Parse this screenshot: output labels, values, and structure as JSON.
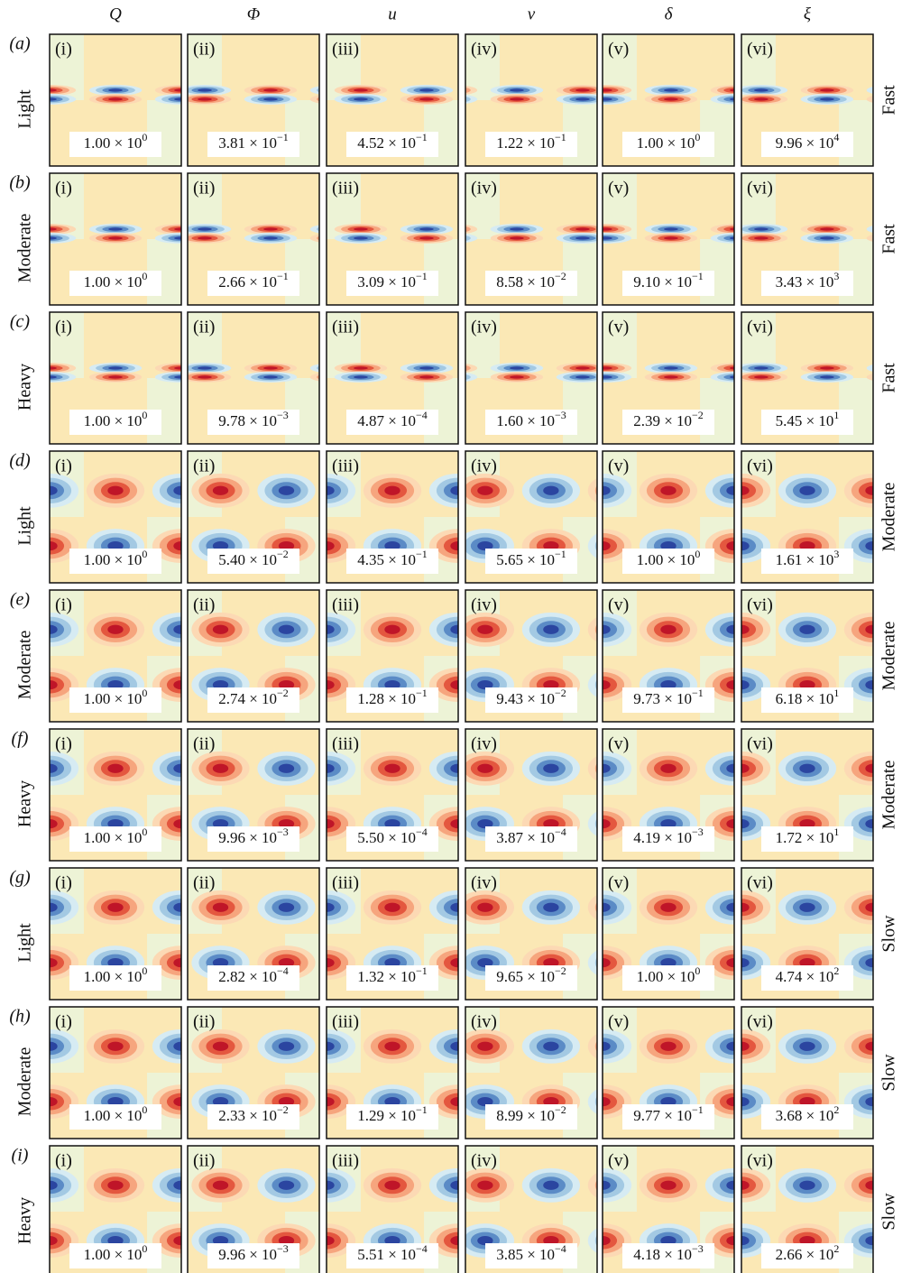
{
  "columns": [
    "Q",
    "Φ",
    "u",
    "v",
    "δ",
    "ξ"
  ],
  "panel_ids": [
    "(i)",
    "(ii)",
    "(iii)",
    "(iv)",
    "(v)",
    "(vi)"
  ],
  "rows": [
    {
      "letter": "(a)",
      "left": "Light",
      "right": "Fast",
      "panels": [
        {
          "text": "1.00 × 10",
          "exponent": "0"
        },
        {
          "text": "3.81 × 10",
          "exponent": "−1"
        },
        {
          "text": "4.52 × 10",
          "exponent": "−1"
        },
        {
          "text": "1.22 × 10",
          "exponent": "−1"
        },
        {
          "text": "1.00 × 10",
          "exponent": "0"
        },
        {
          "text": "9.96 × 10",
          "exponent": "4"
        }
      ]
    },
    {
      "letter": "(b)",
      "left": "Moderate",
      "right": "Fast",
      "panels": [
        {
          "text": "1.00 × 10",
          "exponent": "0"
        },
        {
          "text": "2.66 × 10",
          "exponent": "−1"
        },
        {
          "text": "3.09 × 10",
          "exponent": "−1"
        },
        {
          "text": "8.58 × 10",
          "exponent": "−2"
        },
        {
          "text": "9.10 × 10",
          "exponent": "−1"
        },
        {
          "text": "3.43 × 10",
          "exponent": "3"
        }
      ]
    },
    {
      "letter": "(c)",
      "left": "Heavy",
      "right": "Fast",
      "panels": [
        {
          "text": "1.00 × 10",
          "exponent": "0"
        },
        {
          "text": "9.78 × 10",
          "exponent": "−3"
        },
        {
          "text": "4.87 × 10",
          "exponent": "−4"
        },
        {
          "text": "1.60 × 10",
          "exponent": "−3"
        },
        {
          "text": "2.39 × 10",
          "exponent": "−2"
        },
        {
          "text": "5.45 × 10",
          "exponent": "1"
        }
      ]
    },
    {
      "letter": "(d)",
      "left": "Light",
      "right": "Moderate",
      "panels": [
        {
          "text": "1.00 × 10",
          "exponent": "0"
        },
        {
          "text": "5.40 × 10",
          "exponent": "−2"
        },
        {
          "text": "4.35 × 10",
          "exponent": "−1"
        },
        {
          "text": "5.65 × 10",
          "exponent": "−1"
        },
        {
          "text": "1.00 × 10",
          "exponent": "0"
        },
        {
          "text": "1.61 × 10",
          "exponent": "3"
        }
      ]
    },
    {
      "letter": "(e)",
      "left": "Moderate",
      "right": "Moderate",
      "panels": [
        {
          "text": "1.00 × 10",
          "exponent": "0"
        },
        {
          "text": "2.74 × 10",
          "exponent": "−2"
        },
        {
          "text": "1.28 × 10",
          "exponent": "−1"
        },
        {
          "text": "9.43 × 10",
          "exponent": "−2"
        },
        {
          "text": "9.73 × 10",
          "exponent": "−1"
        },
        {
          "text": "6.18 × 10",
          "exponent": "1"
        }
      ]
    },
    {
      "letter": "(f)",
      "left": "Heavy",
      "right": "Moderate",
      "panels": [
        {
          "text": "1.00 × 10",
          "exponent": "0"
        },
        {
          "text": "9.96 × 10",
          "exponent": "−3"
        },
        {
          "text": "5.50 × 10",
          "exponent": "−4"
        },
        {
          "text": "3.87 × 10",
          "exponent": "−4"
        },
        {
          "text": "4.19 × 10",
          "exponent": "−3"
        },
        {
          "text": "1.72 × 10",
          "exponent": "1"
        }
      ]
    },
    {
      "letter": "(g)",
      "left": "Light",
      "right": "Slow",
      "panels": [
        {
          "text": "1.00 × 10",
          "exponent": "0"
        },
        {
          "text": "2.82 × 10",
          "exponent": "−4"
        },
        {
          "text": "1.32 × 10",
          "exponent": "−1"
        },
        {
          "text": "9.65 × 10",
          "exponent": "−2"
        },
        {
          "text": "1.00 × 10",
          "exponent": "0"
        },
        {
          "text": "4.74 × 10",
          "exponent": "2"
        }
      ]
    },
    {
      "letter": "(h)",
      "left": "Moderate",
      "right": "Slow",
      "panels": [
        {
          "text": "1.00 × 10",
          "exponent": "0"
        },
        {
          "text": "2.33 × 10",
          "exponent": "−2"
        },
        {
          "text": "1.29 × 10",
          "exponent": "−1"
        },
        {
          "text": "8.99 × 10",
          "exponent": "−2"
        },
        {
          "text": "9.77 × 10",
          "exponent": "−1"
        },
        {
          "text": "3.68 × 10",
          "exponent": "2"
        }
      ]
    },
    {
      "letter": "(i)",
      "left": "Heavy",
      "right": "Slow",
      "panels": [
        {
          "text": "1.00 × 10",
          "exponent": "0"
        },
        {
          "text": "9.96 × 10",
          "exponent": "−3"
        },
        {
          "text": "5.51 × 10",
          "exponent": "−4"
        },
        {
          "text": "3.85 × 10",
          "exponent": "−4"
        },
        {
          "text": "4.18 × 10",
          "exponent": "−3"
        },
        {
          "text": "2.66 × 10",
          "exponent": "2"
        }
      ]
    }
  ]
}
